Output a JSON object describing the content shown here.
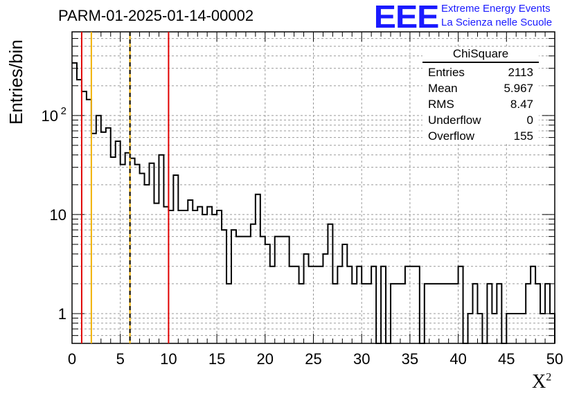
{
  "header": {
    "title": "PARM-01-2025-01-14-00002",
    "logo_text": "EEE",
    "logo_line1": "Extreme Energy Events",
    "logo_line2": "La Scienza nelle Scuole"
  },
  "stats_box": {
    "name": "ChiSquare",
    "rows": [
      {
        "label": "Entries",
        "value": "2113"
      },
      {
        "label": "Mean",
        "value": "5.967"
      },
      {
        "label": "RMS",
        "value": "8.47"
      },
      {
        "label": "Underflow",
        "value": "0"
      },
      {
        "label": "Overflow",
        "value": "155"
      }
    ]
  },
  "colors": {
    "brand": "#1a1aff",
    "red_line": "#e00000",
    "yellow_line": "#f0b000",
    "dashed_line": "#000000"
  },
  "chart_data": {
    "type": "histogram",
    "title": "PARM-01-2025-01-14-00002",
    "xlabel": "X",
    "xlabel_sup": "2",
    "ylabel": "Entries/bin",
    "xlim": [
      0,
      50
    ],
    "ylim": [
      0.5,
      700
    ],
    "yscale": "log",
    "bin_width": 0.5,
    "x_ticks": [
      0,
      5,
      10,
      15,
      20,
      25,
      30,
      35,
      40,
      45,
      50
    ],
    "y_tick_labels": [
      {
        "value": 1,
        "label": "1"
      },
      {
        "value": 10,
        "label": "10"
      },
      {
        "value": 100,
        "label": "10",
        "sup": "2"
      }
    ],
    "counts": [
      340,
      230,
      175,
      145,
      66,
      100,
      68,
      75,
      38,
      55,
      32,
      42,
      37,
      32,
      26,
      20,
      33,
      13,
      40,
      12,
      11,
      25,
      11,
      11,
      14,
      11,
      12,
      10,
      12,
      10,
      11,
      7,
      2,
      7,
      6,
      6,
      6,
      8,
      16,
      6,
      5,
      3,
      6,
      6,
      6,
      3,
      3,
      2,
      4,
      3,
      3,
      3,
      4,
      8,
      2,
      3,
      5,
      3,
      2,
      3,
      2,
      2,
      3,
      0.5,
      3,
      0.5,
      2,
      2,
      2,
      3,
      3,
      3,
      0.5,
      2,
      2,
      2,
      2,
      2,
      2,
      2,
      3,
      0.5,
      1,
      2,
      1,
      0.5,
      2,
      1,
      2,
      0.5,
      1,
      1,
      1,
      1,
      2,
      3,
      2,
      1,
      2,
      1
    ],
    "vertical_lines": [
      {
        "x": 1,
        "color": "red",
        "style": "solid"
      },
      {
        "x": 2,
        "color": "yellow",
        "style": "solid"
      },
      {
        "x": 6,
        "color": "yellow-black",
        "style": "dashed"
      },
      {
        "x": 10,
        "color": "red",
        "style": "solid"
      }
    ],
    "grid": true
  }
}
